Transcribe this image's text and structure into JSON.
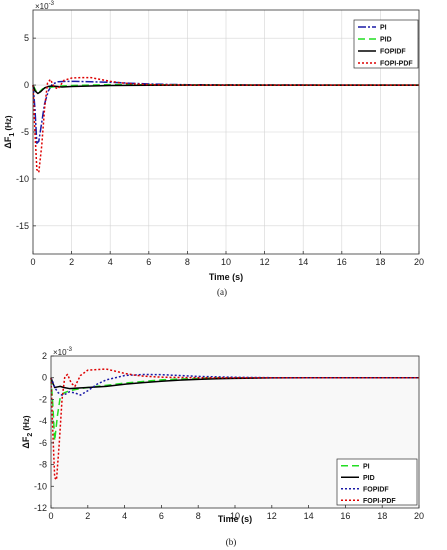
{
  "chart_data": [
    {
      "type": "line",
      "caption": "(a)",
      "xlabel": "Time (s)",
      "ylabel": "ΔF",
      "ylabel_sub": "1",
      "ylabel_unit": " (Hz)",
      "multiplier_base": "×10",
      "multiplier_exp": "-3",
      "xlim": [
        0,
        20
      ],
      "ylim": [
        -18,
        8
      ],
      "xticks": [
        0,
        2,
        4,
        6,
        8,
        10,
        12,
        14,
        16,
        18,
        20
      ],
      "yticks": [
        -15,
        -10,
        -5,
        0,
        5
      ],
      "grid": true,
      "legend_position": "top-right",
      "series": [
        {
          "name": "PI",
          "color": "#1a1aa6",
          "dash": "8,2,2,2",
          "x": [
            0,
            0.1,
            0.2,
            0.3,
            0.45,
            0.6,
            0.8,
            1.0,
            1.3,
            1.7,
            2.2,
            3,
            4,
            5,
            6,
            7,
            8,
            10,
            12,
            15,
            20
          ],
          "y": [
            0,
            -2.5,
            -6.2,
            -6.0,
            -4.0,
            -2.0,
            -0.6,
            0.1,
            0.35,
            0.4,
            0.4,
            0.35,
            0.3,
            0.2,
            0.12,
            0.07,
            0.04,
            0.02,
            0.01,
            0,
            0
          ]
        },
        {
          "name": "PID",
          "color": "#22dd22",
          "dash": "7,4",
          "x": [
            0,
            0.1,
            0.2,
            0.35,
            0.5,
            0.7,
            1.0,
            1.5,
            2,
            3,
            4,
            6,
            8,
            12,
            20
          ],
          "y": [
            0,
            -0.4,
            -0.8,
            -0.7,
            -0.4,
            -0.3,
            -0.2,
            -0.1,
            -0.05,
            0,
            0.05,
            0.03,
            0.01,
            0,
            0
          ]
        },
        {
          "name": "FOPIDF",
          "color": "#000000",
          "dash": "",
          "x": [
            0,
            0.1,
            0.25,
            0.4,
            0.6,
            0.8,
            1.0,
            1.5,
            2,
            3,
            4,
            6,
            8,
            12,
            20
          ],
          "y": [
            0,
            -0.6,
            -0.9,
            -0.7,
            -0.3,
            -0.15,
            -0.1,
            -0.2,
            -0.15,
            -0.1,
            -0.05,
            -0.02,
            0,
            0,
            0
          ]
        },
        {
          "name": "FOPI-PDF",
          "color": "#dd0000",
          "dash": "2,2",
          "x": [
            0,
            0.1,
            0.2,
            0.3,
            0.45,
            0.6,
            0.75,
            0.9,
            1.1,
            1.3,
            1.6,
            2.0,
            2.5,
            3.0,
            3.5,
            4.0,
            4.5,
            5,
            6,
            7,
            8,
            10,
            20
          ],
          "y": [
            0,
            -5.0,
            -9.0,
            -9.3,
            -6.5,
            -2.5,
            0.2,
            0.6,
            -0.2,
            -0.4,
            0.5,
            0.75,
            0.8,
            0.8,
            0.6,
            0.4,
            0.25,
            0.15,
            0.05,
            0.02,
            0,
            0,
            0
          ]
        }
      ]
    },
    {
      "type": "line",
      "caption": "(b)",
      "xlabel": "Time (s)",
      "ylabel": "ΔF",
      "ylabel_sub": "2",
      "ylabel_unit": " (Hz)",
      "multiplier_base": "×10",
      "multiplier_exp": "-3",
      "xlim": [
        0,
        20
      ],
      "ylim": [
        -12,
        2
      ],
      "xticks": [
        0,
        2,
        4,
        6,
        8,
        10,
        12,
        14,
        16,
        18,
        20
      ],
      "yticks": [
        -12,
        -10,
        -8,
        -6,
        -4,
        -2,
        0,
        2
      ],
      "grid": false,
      "legend_position": "bottom-right",
      "series": [
        {
          "name": "PI",
          "color": "#22dd22",
          "dash": "7,4",
          "x": [
            0,
            0.1,
            0.2,
            0.35,
            0.5,
            0.7,
            1.0,
            1.3,
            1.6,
            2,
            3,
            4,
            5,
            6,
            7,
            8,
            9,
            10,
            12,
            14,
            20
          ],
          "y": [
            0,
            -2.5,
            -5.8,
            -3.5,
            -1.8,
            -1.4,
            -1.2,
            -1.1,
            -1.0,
            -0.9,
            -0.7,
            -0.5,
            -0.35,
            -0.2,
            -0.12,
            -0.07,
            -0.04,
            -0.02,
            0,
            0,
            0
          ]
        },
        {
          "name": "PID",
          "color": "#000000",
          "dash": "",
          "x": [
            0,
            0.1,
            0.2,
            0.35,
            0.5,
            0.7,
            1.0,
            1.5,
            2,
            3,
            4,
            5,
            6,
            7,
            8,
            9,
            10,
            12,
            14,
            16,
            20
          ],
          "y": [
            0,
            -0.5,
            -0.9,
            -0.85,
            -0.8,
            -0.9,
            -1.0,
            -0.95,
            -0.9,
            -0.8,
            -0.6,
            -0.45,
            -0.32,
            -0.22,
            -0.15,
            -0.1,
            -0.06,
            -0.02,
            0,
            0,
            0
          ]
        },
        {
          "name": "FOPIDF",
          "color": "#1a1aa6",
          "dash": "2,2",
          "x": [
            0,
            0.1,
            0.2,
            0.4,
            0.6,
            0.8,
            1.0,
            1.3,
            1.6,
            2,
            2.5,
            3,
            3.5,
            4,
            5,
            6,
            7,
            8,
            10,
            12,
            20
          ],
          "y": [
            0,
            -0.4,
            -0.9,
            -1.4,
            -1.6,
            -1.5,
            -1.3,
            -1.4,
            -1.6,
            -1.2,
            -0.6,
            -0.2,
            0,
            0.2,
            0.3,
            0.28,
            0.2,
            0.12,
            0.04,
            0,
            0
          ]
        },
        {
          "name": "FOPI-PDF",
          "color": "#dd0000",
          "dash": "2,2",
          "x": [
            0,
            0.1,
            0.2,
            0.3,
            0.45,
            0.6,
            0.75,
            0.9,
            1.1,
            1.3,
            1.6,
            2.0,
            2.5,
            3.0,
            3.5,
            4.0,
            4.5,
            5,
            6,
            7,
            8,
            10,
            20
          ],
          "y": [
            0,
            -5.0,
            -9.2,
            -9.4,
            -6.0,
            -2.0,
            0.1,
            0.3,
            -0.5,
            -0.8,
            0.2,
            0.7,
            0.75,
            0.8,
            0.6,
            0.4,
            0.25,
            0.15,
            0.05,
            0.02,
            0,
            0,
            0
          ]
        }
      ]
    }
  ]
}
